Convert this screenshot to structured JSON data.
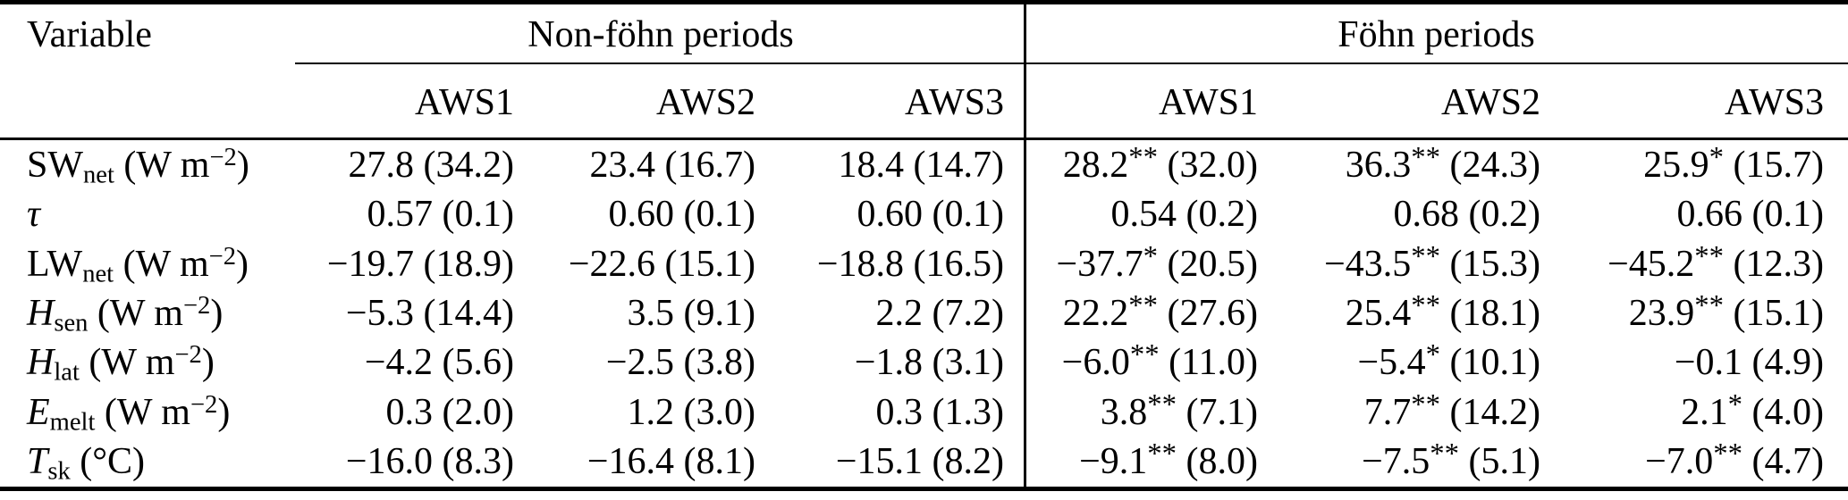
{
  "table": {
    "corner_header": "Variable",
    "col_groups": [
      {
        "label": "Non-föhn periods",
        "columns": [
          "AWS1",
          "AWS2",
          "AWS3"
        ]
      },
      {
        "label": "Föhn periods",
        "columns": [
          "AWS1",
          "AWS2",
          "AWS3"
        ]
      }
    ],
    "rows": [
      {
        "variable": {
          "symbol": "SW",
          "italic": false,
          "subscript": "net",
          "unit": "W m",
          "unit_sup": "−2"
        },
        "cells": [
          {
            "value": "27.8",
            "stars": "",
            "sd": "34.2"
          },
          {
            "value": "23.4",
            "stars": "",
            "sd": "16.7"
          },
          {
            "value": "18.4",
            "stars": "",
            "sd": "14.7"
          },
          {
            "value": "28.2",
            "stars": "**",
            "sd": "32.0"
          },
          {
            "value": "36.3",
            "stars": "**",
            "sd": "24.3"
          },
          {
            "value": "25.9",
            "stars": "*",
            "sd": "15.7"
          }
        ]
      },
      {
        "variable": {
          "symbol": "τ",
          "italic": true,
          "subscript": "",
          "unit": "",
          "unit_sup": ""
        },
        "cells": [
          {
            "value": "0.57",
            "stars": "",
            "sd": "0.1"
          },
          {
            "value": "0.60",
            "stars": "",
            "sd": "0.1"
          },
          {
            "value": "0.60",
            "stars": "",
            "sd": "0.1"
          },
          {
            "value": "0.54",
            "stars": "",
            "sd": "0.2"
          },
          {
            "value": "0.68",
            "stars": "",
            "sd": "0.2"
          },
          {
            "value": "0.66",
            "stars": "",
            "sd": "0.1"
          }
        ]
      },
      {
        "variable": {
          "symbol": "LW",
          "italic": false,
          "subscript": "net",
          "unit": "W m",
          "unit_sup": "−2"
        },
        "cells": [
          {
            "value": "−19.7",
            "stars": "",
            "sd": "18.9"
          },
          {
            "value": "−22.6",
            "stars": "",
            "sd": "15.1"
          },
          {
            "value": "−18.8",
            "stars": "",
            "sd": "16.5"
          },
          {
            "value": "−37.7",
            "stars": "*",
            "sd": "20.5"
          },
          {
            "value": "−43.5",
            "stars": "**",
            "sd": "15.3"
          },
          {
            "value": "−45.2",
            "stars": "**",
            "sd": "12.3"
          }
        ]
      },
      {
        "variable": {
          "symbol": "H",
          "italic": true,
          "subscript": "sen",
          "unit": "W m",
          "unit_sup": "−2"
        },
        "cells": [
          {
            "value": "−5.3",
            "stars": "",
            "sd": "14.4"
          },
          {
            "value": "3.5",
            "stars": "",
            "sd": "9.1"
          },
          {
            "value": "2.2",
            "stars": "",
            "sd": "7.2"
          },
          {
            "value": "22.2",
            "stars": "**",
            "sd": "27.6"
          },
          {
            "value": "25.4",
            "stars": "**",
            "sd": "18.1"
          },
          {
            "value": "23.9",
            "stars": "**",
            "sd": "15.1"
          }
        ]
      },
      {
        "variable": {
          "symbol": "H",
          "italic": true,
          "subscript": "lat",
          "unit": "W m",
          "unit_sup": "−2"
        },
        "cells": [
          {
            "value": "−4.2",
            "stars": "",
            "sd": "5.6"
          },
          {
            "value": "−2.5",
            "stars": "",
            "sd": "3.8"
          },
          {
            "value": "−1.8",
            "stars": "",
            "sd": "3.1"
          },
          {
            "value": "−6.0",
            "stars": "**",
            "sd": "11.0"
          },
          {
            "value": "−5.4",
            "stars": "*",
            "sd": "10.1"
          },
          {
            "value": "−0.1",
            "stars": "",
            "sd": "4.9"
          }
        ]
      },
      {
        "variable": {
          "symbol": "E",
          "italic": true,
          "subscript": "melt",
          "unit": "W m",
          "unit_sup": "−2"
        },
        "cells": [
          {
            "value": "0.3",
            "stars": "",
            "sd": "2.0"
          },
          {
            "value": "1.2",
            "stars": "",
            "sd": "3.0"
          },
          {
            "value": "0.3",
            "stars": "",
            "sd": "1.3"
          },
          {
            "value": "3.8",
            "stars": "**",
            "sd": "7.1"
          },
          {
            "value": "7.7",
            "stars": "**",
            "sd": "14.2"
          },
          {
            "value": "2.1",
            "stars": "*",
            "sd": "4.0"
          }
        ]
      },
      {
        "variable": {
          "symbol": "T",
          "italic": true,
          "subscript": "sk",
          "unit": "°C",
          "unit_sup": ""
        },
        "cells": [
          {
            "value": "−16.0",
            "stars": "",
            "sd": "8.3"
          },
          {
            "value": "−16.4",
            "stars": "",
            "sd": "8.1"
          },
          {
            "value": "−15.1",
            "stars": "",
            "sd": "8.2"
          },
          {
            "value": "−9.1",
            "stars": "**",
            "sd": "8.0"
          },
          {
            "value": "−7.5",
            "stars": "**",
            "sd": "5.1"
          },
          {
            "value": "−7.0",
            "stars": "**",
            "sd": "4.7"
          }
        ]
      }
    ]
  }
}
